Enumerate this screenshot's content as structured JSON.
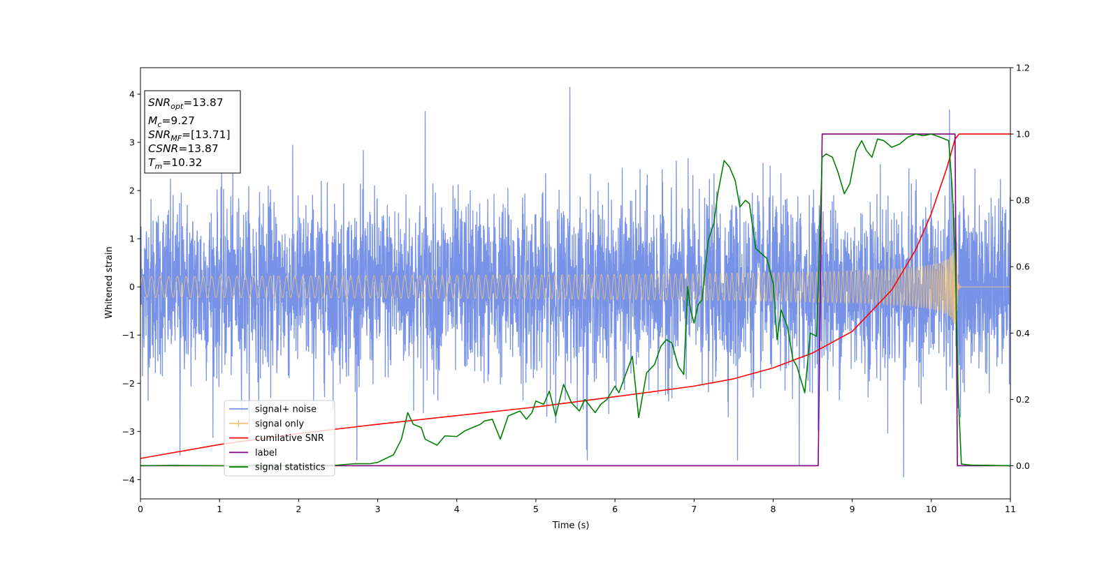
{
  "chart_data": {
    "type": "line",
    "title": "",
    "xlabel": "Time (s)",
    "ylabel": "Whitened strain",
    "ylabel_right": "",
    "xlim": [
      0,
      11
    ],
    "ylim": [
      -4.4,
      4.55
    ],
    "ylim_right": [
      -0.1,
      1.2
    ],
    "xticks": [
      0,
      1,
      2,
      3,
      4,
      5,
      6,
      7,
      8,
      9,
      10,
      11
    ],
    "yticks": [
      -4,
      -3,
      -2,
      -1,
      0,
      1,
      2,
      3,
      4
    ],
    "yticks_right": [
      "0.0",
      "0.2",
      "0.4",
      "0.6",
      "0.8",
      "1.0",
      "1.2"
    ],
    "grid": false,
    "legend_placement": "lower-left",
    "info_box": {
      "lines": [
        {
          "sym": "SNR",
          "sub": "opt",
          "val": "=13.87"
        },
        {
          "sym": "M",
          "sub": "c",
          "val": "=9.27"
        },
        {
          "sym": "SNR",
          "sub": "MF",
          "val": "=[13.71]"
        },
        {
          "sym": "CSNR",
          "sub": "",
          "val": "=13.87"
        },
        {
          "sym": "T",
          "sub": "m",
          "val": "=10.32"
        }
      ]
    },
    "series": [
      {
        "name": "signal+ noise",
        "color": "#7792e6",
        "axis": "left",
        "kind": "noise",
        "envelope_sigma": 0.9,
        "extremes": [
          {
            "x": 0.5,
            "y": -3.5
          },
          {
            "x": 5.43,
            "y": 4.15
          },
          {
            "x": 5.65,
            "y": -3.6
          },
          {
            "x": 8.33,
            "y": -3.7
          },
          {
            "x": 9.65,
            "y": -3.95
          },
          {
            "x": 10.23,
            "y": 3.68
          },
          {
            "x": 3.6,
            "y": 3.65
          },
          {
            "x": 7.55,
            "y": -3.6
          }
        ]
      },
      {
        "name": "signal only",
        "color": "#f2c478",
        "axis": "left",
        "kind": "chirp",
        "amplitude_start": 0.04,
        "amplitude_peak": 1.05,
        "merger_time": 10.32
      },
      {
        "name": "cumilative SNR",
        "color": "#ff0000",
        "axis": "right",
        "kind": "line",
        "x": [
          0,
          1,
          2,
          3,
          4,
          5,
          6,
          7,
          7.5,
          8,
          8.5,
          9,
          9.5,
          9.8,
          10.0,
          10.1,
          10.2,
          10.3,
          10.35,
          11
        ],
        "y": [
          0.022,
          0.064,
          0.097,
          0.125,
          0.151,
          0.177,
          0.208,
          0.24,
          0.262,
          0.295,
          0.34,
          0.405,
          0.53,
          0.65,
          0.76,
          0.83,
          0.9,
          0.985,
          1.0,
          1.0
        ]
      },
      {
        "name": "label",
        "color": "#800080",
        "axis": "right",
        "kind": "line",
        "x": [
          0,
          8.57,
          8.62,
          10.3,
          10.33,
          11
        ],
        "y": [
          0,
          0,
          1,
          1,
          0,
          0
        ]
      },
      {
        "name": "signal statistics",
        "color": "#008000",
        "axis": "right",
        "kind": "line",
        "x": [
          0,
          0.4,
          1,
          2,
          2.5,
          2.7,
          2.9,
          3.0,
          3.2,
          3.3,
          3.38,
          3.45,
          3.55,
          3.6,
          3.75,
          3.85,
          4.0,
          4.1,
          4.2,
          4.3,
          4.35,
          4.45,
          4.55,
          4.65,
          4.75,
          4.8,
          4.88,
          4.95,
          5.0,
          5.1,
          5.17,
          5.25,
          5.35,
          5.45,
          5.55,
          5.62,
          5.7,
          5.75,
          5.82,
          5.9,
          6.0,
          6.05,
          6.12,
          6.22,
          6.3,
          6.4,
          6.5,
          6.58,
          6.65,
          6.72,
          6.8,
          6.87,
          6.92,
          6.96,
          7.0,
          7.05,
          7.1,
          7.18,
          7.25,
          7.3,
          7.38,
          7.45,
          7.52,
          7.58,
          7.65,
          7.7,
          7.78,
          7.85,
          7.92,
          8.0,
          8.05,
          8.1,
          8.18,
          8.25,
          8.3,
          8.4,
          8.47,
          8.55,
          8.62,
          8.67,
          8.75,
          8.82,
          8.9,
          8.97,
          9.05,
          9.12,
          9.18,
          9.25,
          9.32,
          9.4,
          9.5,
          9.6,
          9.7,
          9.8,
          9.9,
          10.0,
          10.12,
          10.22,
          10.26,
          10.3,
          10.34,
          10.38,
          10.5,
          11
        ],
        "y": [
          0,
          0.001,
          0,
          0.001,
          0.002,
          0.006,
          0.006,
          0.01,
          0.033,
          0.08,
          0.16,
          0.125,
          0.115,
          0.08,
          0.062,
          0.09,
          0.088,
          0.105,
          0.115,
          0.125,
          0.135,
          0.14,
          0.08,
          0.15,
          0.16,
          0.165,
          0.14,
          0.16,
          0.195,
          0.185,
          0.225,
          0.15,
          0.245,
          0.19,
          0.165,
          0.2,
          0.175,
          0.16,
          0.185,
          0.2,
          0.24,
          0.22,
          0.265,
          0.33,
          0.145,
          0.28,
          0.305,
          0.36,
          0.38,
          0.37,
          0.3,
          0.275,
          0.54,
          0.465,
          0.43,
          0.485,
          0.5,
          0.68,
          0.73,
          0.82,
          0.92,
          0.9,
          0.86,
          0.78,
          0.8,
          0.79,
          0.655,
          0.64,
          0.625,
          0.55,
          0.38,
          0.47,
          0.42,
          0.32,
          0.3,
          0.22,
          0.4,
          0.39,
          0.93,
          0.94,
          0.93,
          0.885,
          0.82,
          0.85,
          0.95,
          0.98,
          0.95,
          0.93,
          0.985,
          0.98,
          0.96,
          0.97,
          0.99,
          1.0,
          0.995,
          1.0,
          0.99,
          0.98,
          0.85,
          0.65,
          0.22,
          0.005,
          0.002,
          0
        ]
      }
    ]
  }
}
